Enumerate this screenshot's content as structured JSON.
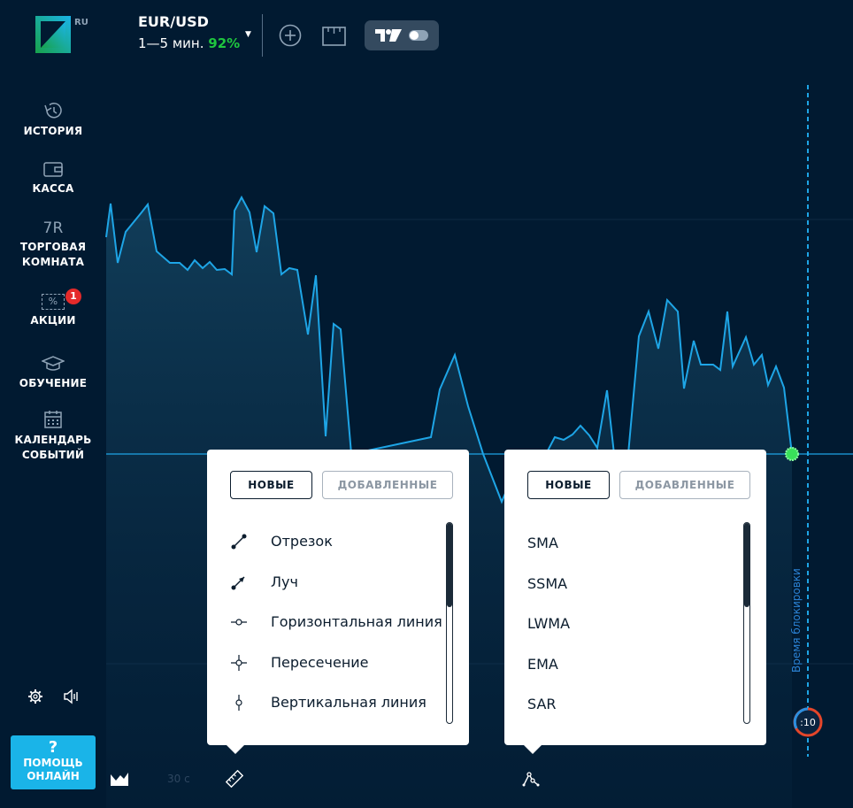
{
  "header": {
    "logo_badge": "RU",
    "asset_name": "EUR/USD",
    "asset_timeframe": "1—5 мин.",
    "asset_payout": "92%",
    "icons": [
      "chevron-down-icon",
      "add-icon",
      "ruler-icon",
      "tradingview-icon",
      "toggle-icon"
    ]
  },
  "sidebar": {
    "items": [
      {
        "label": "ИСТОРИЯ",
        "icon": "history-icon"
      },
      {
        "label": "КАССА",
        "icon": "wallet-icon"
      },
      {
        "label": "ТОРГОВАЯ КОМНАТА",
        "icon": "trading-room-icon",
        "glyph": "7R"
      },
      {
        "label": "АКЦИИ",
        "icon": "promo-icon",
        "badge": "1",
        "glyph": "%"
      },
      {
        "label": "ОБУЧЕНИЕ",
        "icon": "graduation-icon"
      },
      {
        "label": "КАЛЕНДАРЬ СОБЫТИЙ",
        "icon": "calendar-icon"
      }
    ],
    "settings_icon": "gear-icon",
    "sound_icon": "sound-icon"
  },
  "help": {
    "question_mark": "?",
    "label": "ПОМОЩЬ ОНЛАЙН"
  },
  "chart": {
    "lock_label": "Время блокировки",
    "timer_value": ":10",
    "timeframe_label": "30 с",
    "line_color": "#1ea5e6",
    "current_point_color": "#39e05a"
  },
  "drawings_popup": {
    "tab_new": "НОВЫЕ",
    "tab_added": "ДОБАВЛЕННЫЕ",
    "items": [
      {
        "label": "Отрезок",
        "icon": "segment-icon"
      },
      {
        "label": "Луч",
        "icon": "ray-icon"
      },
      {
        "label": "Горизонтальная линия",
        "icon": "horizontal-line-icon"
      },
      {
        "label": "Пересечение",
        "icon": "crosshair-icon"
      },
      {
        "label": "Вертикальная линия",
        "icon": "vertical-line-icon"
      }
    ]
  },
  "indicators_popup": {
    "tab_new": "НОВЫЕ",
    "tab_added": "ДОБАВЛЕННЫЕ",
    "items": [
      {
        "label": "SMA"
      },
      {
        "label": "SSMA"
      },
      {
        "label": "LWMA"
      },
      {
        "label": "EMA"
      },
      {
        "label": "SAR"
      }
    ]
  },
  "bottom_toolbar": {
    "icons": [
      "area-chart-icon",
      "drawing-tools-icon",
      "indicators-icon"
    ]
  }
}
